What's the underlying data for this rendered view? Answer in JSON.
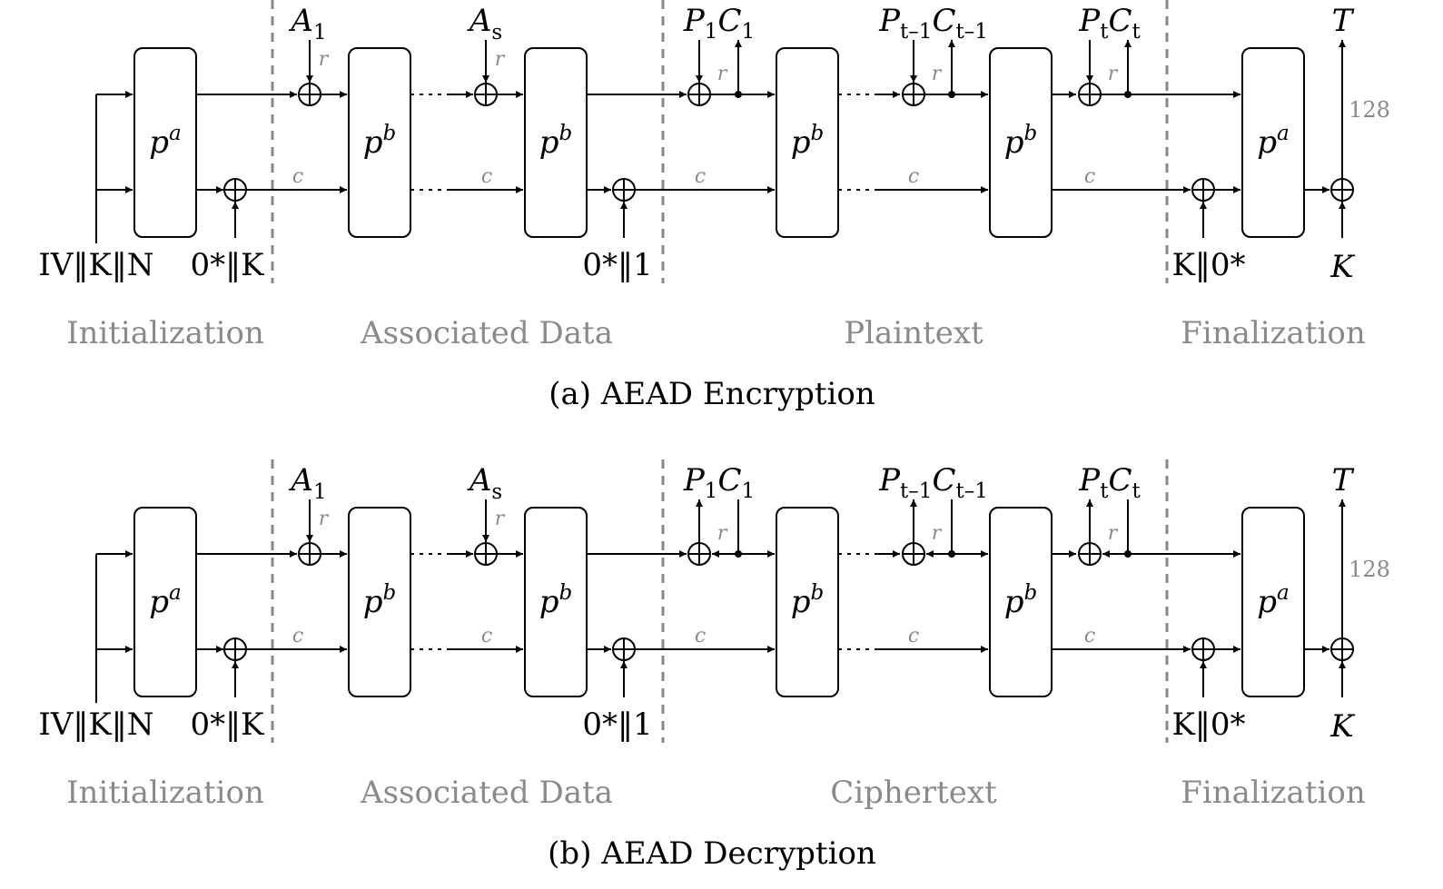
{
  "diagrams": [
    {
      "id": "encryption",
      "caption": "(a) AEAD Encryption",
      "mode": "encrypt",
      "phases": [
        "Initialization",
        "Associated Data",
        "Plaintext",
        "Finalization"
      ],
      "inputs": {
        "init": "IV‖K‖N",
        "init_key": "0*‖K",
        "ad_sep": "0*‖1",
        "fin_key": "K‖0*",
        "tag_key": "K"
      },
      "blocks": {
        "init": "p",
        "init_sup": "a",
        "b": "p",
        "b_sup": "b",
        "fin": "p",
        "fin_sup": "a"
      },
      "ad_labels": [
        {
          "main": "A",
          "sub": "1"
        },
        {
          "main": "A",
          "sub": "s"
        }
      ],
      "msg_labels": [
        {
          "p": "P",
          "p_sub": "1",
          "c": "C",
          "c_sub": "1"
        },
        {
          "p": "P",
          "p_sub": "t–1",
          "c": "C",
          "c_sub": "t–1"
        },
        {
          "p": "P",
          "p_sub": "t",
          "c": "C",
          "c_sub": "t"
        }
      ],
      "rate": "r",
      "capacity": "c",
      "tag": "T",
      "tag_bits": "128"
    },
    {
      "id": "decryption",
      "caption": "(b) AEAD Decryption",
      "mode": "decrypt",
      "phases": [
        "Initialization",
        "Associated Data",
        "Ciphertext",
        "Finalization"
      ],
      "inputs": {
        "init": "IV‖K‖N",
        "init_key": "0*‖K",
        "ad_sep": "0*‖1",
        "fin_key": "K‖0*",
        "tag_key": "K"
      },
      "blocks": {
        "init": "p",
        "init_sup": "a",
        "b": "p",
        "b_sup": "b",
        "fin": "p",
        "fin_sup": "a"
      },
      "ad_labels": [
        {
          "main": "A",
          "sub": "1"
        },
        {
          "main": "A",
          "sub": "s"
        }
      ],
      "msg_labels": [
        {
          "p": "P",
          "p_sub": "1",
          "c": "C",
          "c_sub": "1"
        },
        {
          "p": "P",
          "p_sub": "t–1",
          "c": "C",
          "c_sub": "t–1"
        },
        {
          "p": "P",
          "p_sub": "t",
          "c": "C",
          "c_sub": "t"
        }
      ],
      "rate": "r",
      "capacity": "c",
      "tag": "T",
      "tag_bits": "128"
    }
  ]
}
